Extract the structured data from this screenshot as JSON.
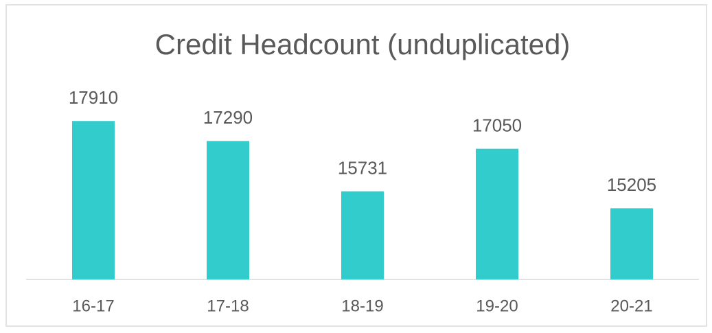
{
  "chart_data": {
    "type": "bar",
    "title": "Credit Headcount (unduplicated)",
    "categories": [
      "16-17",
      "17-18",
      "18-19",
      "19-20",
      "20-21"
    ],
    "values": [
      17910,
      17290,
      15731,
      17050,
      15205
    ],
    "color": "#33cccc",
    "ylim": [
      13000,
      19000
    ]
  }
}
